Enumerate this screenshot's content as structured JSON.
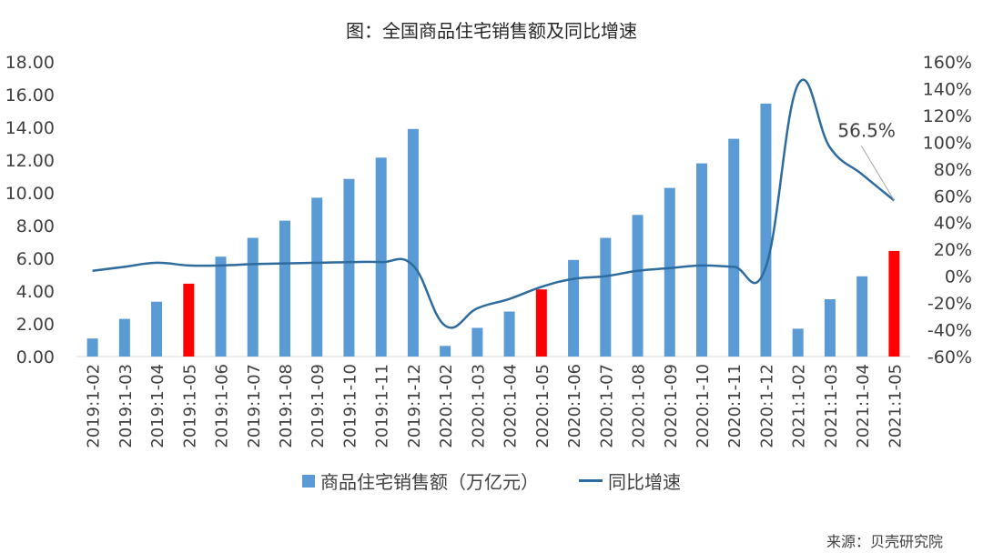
{
  "chart_data": {
    "type": "bar+line",
    "title": "图：全国商品住宅销售额及同比增速",
    "categories": [
      "2019:1-02",
      "2019:1-03",
      "2019:1-04",
      "2019:1-05",
      "2019:1-06",
      "2019:1-07",
      "2019:1-08",
      "2019:1-09",
      "2019:1-10",
      "2019:1-11",
      "2019:1-12",
      "2020:1-02",
      "2020:1-03",
      "2020:1-04",
      "2020:1-05",
      "2020:1-06",
      "2020:1-07",
      "2020:1-08",
      "2020:1-09",
      "2020:1-10",
      "2020:1-11",
      "2020:1-12",
      "2021:1-02",
      "2021:1-03",
      "2021:1-04",
      "2021:1-05"
    ],
    "series": [
      {
        "name": "商品住宅销售额（万亿元）",
        "type": "bar",
        "axis": "left",
        "color": "#5b9bd5",
        "highlight_color": "#ff0000",
        "highlight_categories": [
          "2019:1-05",
          "2020:1-05",
          "2021:1-05"
        ],
        "values": [
          1.1,
          2.3,
          3.35,
          4.45,
          6.1,
          7.25,
          8.3,
          9.7,
          10.85,
          12.15,
          13.9,
          0.65,
          1.75,
          2.75,
          4.1,
          5.9,
          7.25,
          8.65,
          10.3,
          11.8,
          13.3,
          15.45,
          1.7,
          3.5,
          4.9,
          6.45
        ]
      },
      {
        "name": "同比增速",
        "type": "line",
        "axis": "right",
        "color": "#2e6b9e",
        "values": [
          4,
          7,
          10,
          8,
          8,
          9,
          9.5,
          10,
          10.5,
          10.5,
          8,
          -37,
          -24,
          -17,
          -8,
          -2,
          0,
          4,
          6,
          8,
          7,
          7,
          143,
          96,
          76,
          56.5
        ]
      }
    ],
    "y_left": {
      "min": 0,
      "max": 18,
      "step": 2,
      "tick_labels": [
        "0.00",
        "2.00",
        "4.00",
        "6.00",
        "8.00",
        "10.00",
        "12.00",
        "14.00",
        "16.00",
        "18.00"
      ]
    },
    "y_right": {
      "min": -60,
      "max": 160,
      "step": 20,
      "tick_labels": [
        "-60%",
        "-40%",
        "-20%",
        "0%",
        "20%",
        "40%",
        "60%",
        "80%",
        "100%",
        "120%",
        "140%",
        "160%"
      ]
    },
    "annotation": {
      "text": "56.5%",
      "category": "2021:1-05"
    },
    "legend": {
      "bar_label": "商品住宅销售额（万亿元）",
      "line_label": "同比增速",
      "position": "bottom"
    }
  },
  "source": "来源：贝壳研究院"
}
